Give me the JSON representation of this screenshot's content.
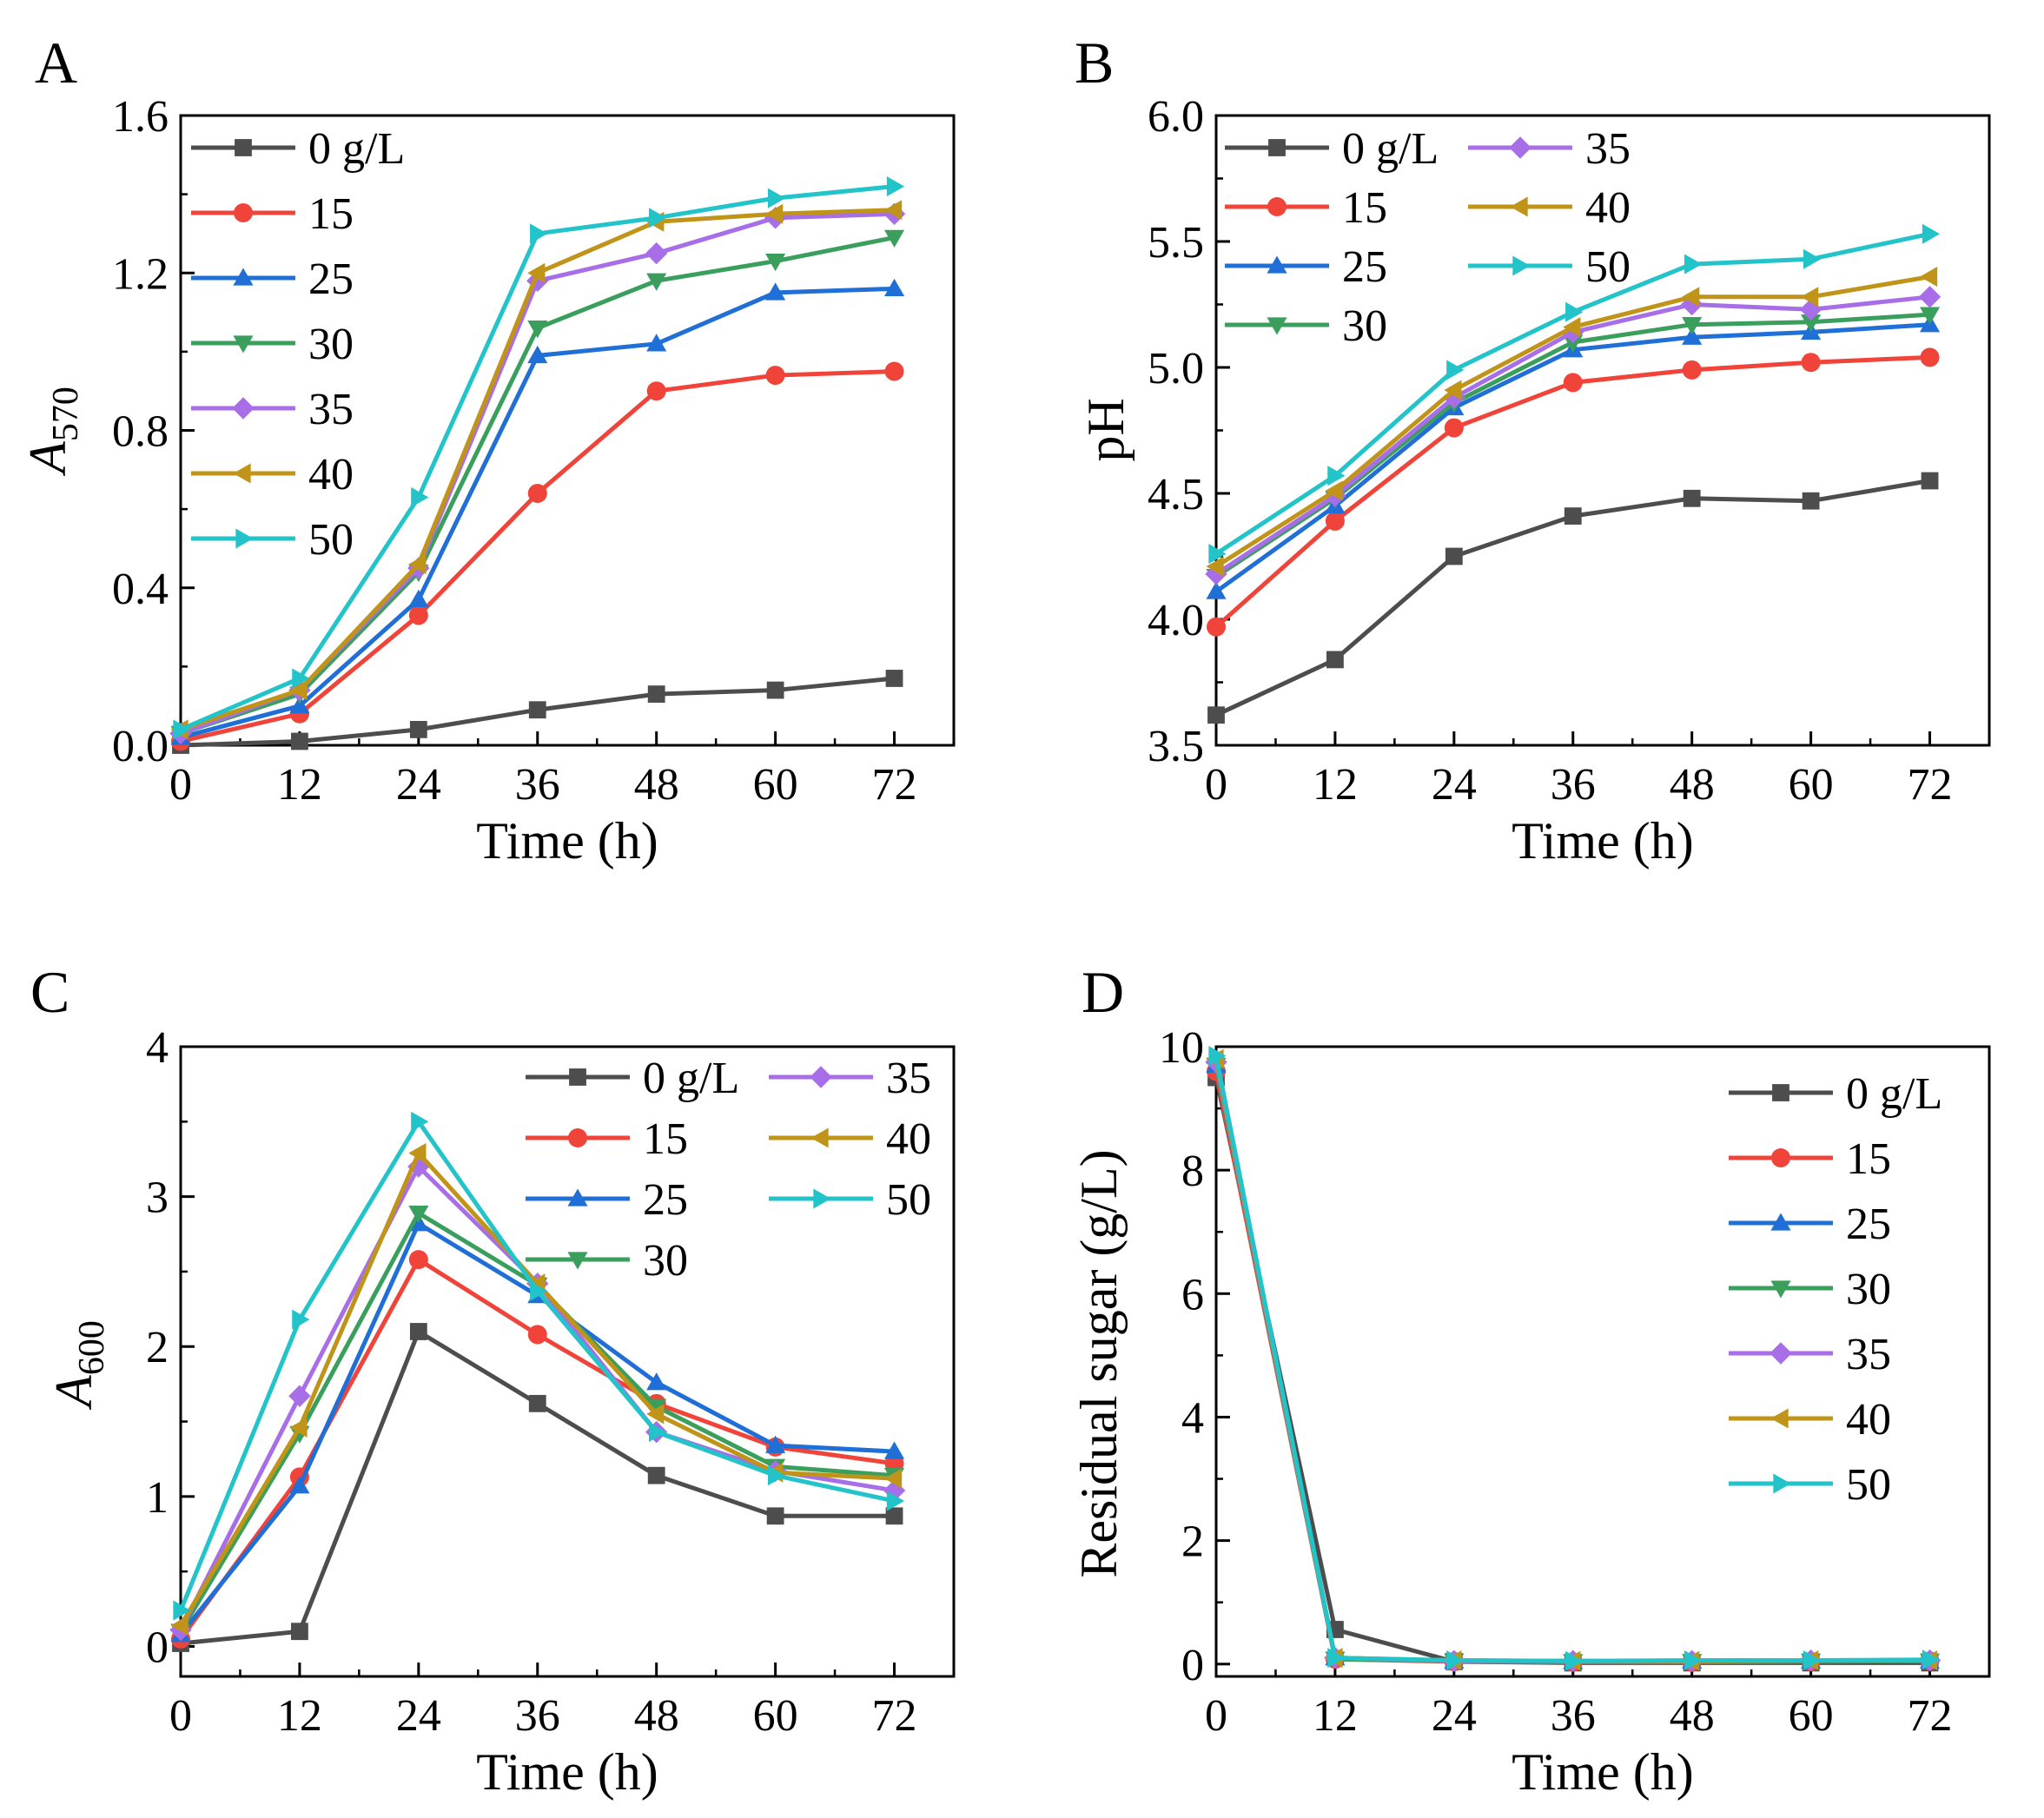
{
  "figure": "Four-panel line chart figure",
  "colors": {
    "0 g/L": "#4d4d4d",
    "15": "#f0443a",
    "25": "#1f6fd6",
    "30": "#3a9e5c",
    "35": "#a86ee8",
    "40": "#c09418",
    "50": "#22c3c9"
  },
  "chart_data": [
    {
      "panel": "A",
      "type": "line",
      "xlabel": "Time (h)",
      "ylabel": "A570",
      "ylabel_main": "A",
      "ylabel_sub": "570",
      "x": [
        0,
        12,
        24,
        36,
        48,
        60,
        72
      ],
      "xlim": [
        0,
        78
      ],
      "ylim": [
        0,
        1.6
      ],
      "xticks": [
        0,
        12,
        24,
        36,
        48,
        60,
        72
      ],
      "yticks": [
        "0.0",
        "0.4",
        "0.8",
        "1.2",
        "1.6"
      ],
      "legend_position": "top-left",
      "legend_columns": 1,
      "series": [
        {
          "name": "0 g/L",
          "marker": "square",
          "values": [
            0.0,
            0.01,
            0.04,
            0.09,
            0.13,
            0.14,
            0.17
          ]
        },
        {
          "name": "15",
          "marker": "circle",
          "values": [
            0.01,
            0.08,
            0.33,
            0.64,
            0.9,
            0.94,
            0.95
          ]
        },
        {
          "name": "25",
          "marker": "triangle-up",
          "values": [
            0.02,
            0.1,
            0.37,
            0.99,
            1.02,
            1.15,
            1.16
          ]
        },
        {
          "name": "30",
          "marker": "triangle-down",
          "values": [
            0.03,
            0.13,
            0.44,
            1.06,
            1.18,
            1.23,
            1.29
          ]
        },
        {
          "name": "35",
          "marker": "diamond",
          "values": [
            0.03,
            0.14,
            0.45,
            1.18,
            1.25,
            1.34,
            1.35
          ]
        },
        {
          "name": "40",
          "marker": "triangle-left",
          "values": [
            0.04,
            0.14,
            0.46,
            1.2,
            1.33,
            1.35,
            1.36
          ]
        },
        {
          "name": "50",
          "marker": "triangle-right",
          "values": [
            0.04,
            0.17,
            0.63,
            1.3,
            1.34,
            1.39,
            1.42
          ]
        }
      ]
    },
    {
      "panel": "B",
      "type": "line",
      "xlabel": "Time (h)",
      "ylabel": "pH",
      "x": [
        0,
        12,
        24,
        36,
        48,
        60,
        72
      ],
      "xlim": [
        0,
        78
      ],
      "ylim": [
        3.5,
        6.0
      ],
      "xticks": [
        0,
        12,
        24,
        36,
        48,
        60,
        72
      ],
      "yticks": [
        "3.5",
        "4.0",
        "4.5",
        "5.0",
        "5.5",
        "6.0"
      ],
      "legend_position": "top-left",
      "legend_columns": 2,
      "series": [
        {
          "name": "0 g/L",
          "marker": "square",
          "values": [
            3.62,
            3.84,
            4.25,
            4.41,
            4.48,
            4.47,
            4.55
          ]
        },
        {
          "name": "15",
          "marker": "circle",
          "values": [
            3.97,
            4.39,
            4.76,
            4.94,
            4.99,
            5.02,
            5.04
          ]
        },
        {
          "name": "25",
          "marker": "triangle-up",
          "values": [
            4.11,
            4.45,
            4.84,
            5.07,
            5.12,
            5.14,
            5.17
          ]
        },
        {
          "name": "30",
          "marker": "triangle-down",
          "values": [
            4.17,
            4.48,
            4.86,
            5.1,
            5.17,
            5.18,
            5.21
          ]
        },
        {
          "name": "35",
          "marker": "diamond",
          "values": [
            4.18,
            4.49,
            4.88,
            5.14,
            5.25,
            5.23,
            5.28
          ]
        },
        {
          "name": "40",
          "marker": "triangle-left",
          "values": [
            4.21,
            4.51,
            4.91,
            5.16,
            5.28,
            5.28,
            5.36
          ]
        },
        {
          "name": "50",
          "marker": "triangle-right",
          "values": [
            4.26,
            4.57,
            4.99,
            5.22,
            5.41,
            5.43,
            5.53
          ]
        }
      ]
    },
    {
      "panel": "C",
      "type": "line",
      "xlabel": "Time (h)",
      "ylabel": "A600",
      "ylabel_main": "A",
      "ylabel_sub": "600",
      "x": [
        0,
        12,
        24,
        36,
        48,
        60,
        72
      ],
      "xlim": [
        0,
        78
      ],
      "ylim": [
        -0.2,
        4
      ],
      "xticks": [
        0,
        12,
        24,
        36,
        48,
        60,
        72
      ],
      "yticks": [
        "0",
        "1",
        "2",
        "3",
        "4"
      ],
      "legend_position": "top-right",
      "legend_columns": 2,
      "series": [
        {
          "name": "0 g/L",
          "marker": "square",
          "values": [
            0.02,
            0.1,
            2.1,
            1.62,
            1.14,
            0.87,
            0.87
          ]
        },
        {
          "name": "15",
          "marker": "circle",
          "values": [
            0.05,
            1.13,
            2.58,
            2.08,
            1.62,
            1.33,
            1.22
          ]
        },
        {
          "name": "25",
          "marker": "triangle-up",
          "values": [
            0.08,
            1.07,
            2.82,
            2.34,
            1.76,
            1.34,
            1.3
          ]
        },
        {
          "name": "30",
          "marker": "triangle-down",
          "values": [
            0.1,
            1.42,
            2.89,
            2.41,
            1.6,
            1.2,
            1.14
          ]
        },
        {
          "name": "35",
          "marker": "diamond",
          "values": [
            0.11,
            1.67,
            3.2,
            2.42,
            1.43,
            1.17,
            1.04
          ]
        },
        {
          "name": "40",
          "marker": "triangle-left",
          "values": [
            0.14,
            1.46,
            3.29,
            2.42,
            1.55,
            1.16,
            1.12
          ]
        },
        {
          "name": "50",
          "marker": "triangle-right",
          "values": [
            0.24,
            2.18,
            3.5,
            2.37,
            1.43,
            1.14,
            0.97
          ]
        }
      ]
    },
    {
      "panel": "D",
      "type": "line",
      "xlabel": "Time (h)",
      "ylabel": "Residual sugar (g/L)",
      "x": [
        0,
        12,
        24,
        36,
        48,
        60,
        72
      ],
      "xlim": [
        0,
        78
      ],
      "ylim": [
        -0.2,
        10
      ],
      "xticks": [
        0,
        12,
        24,
        36,
        48,
        60,
        72
      ],
      "yticks": [
        "0",
        "2",
        "4",
        "6",
        "8",
        "10"
      ],
      "legend_position": "top-right",
      "legend_columns": 1,
      "series": [
        {
          "name": "0 g/L",
          "marker": "square",
          "values": [
            9.5,
            0.56,
            0.04,
            0.02,
            0.02,
            0.02,
            0.02
          ]
        },
        {
          "name": "15",
          "marker": "circle",
          "values": [
            9.6,
            0.08,
            0.04,
            0.03,
            0.03,
            0.04,
            0.05
          ]
        },
        {
          "name": "25",
          "marker": "triangle-up",
          "values": [
            9.7,
            0.1,
            0.05,
            0.04,
            0.05,
            0.05,
            0.05
          ]
        },
        {
          "name": "30",
          "marker": "triangle-down",
          "values": [
            9.7,
            0.08,
            0.05,
            0.04,
            0.04,
            0.05,
            0.05
          ]
        },
        {
          "name": "35",
          "marker": "diamond",
          "values": [
            9.75,
            0.1,
            0.05,
            0.05,
            0.05,
            0.06,
            0.06
          ]
        },
        {
          "name": "40",
          "marker": "triangle-left",
          "values": [
            9.8,
            0.1,
            0.06,
            0.05,
            0.05,
            0.06,
            0.06
          ]
        },
        {
          "name": "50",
          "marker": "triangle-right",
          "values": [
            9.85,
            0.1,
            0.06,
            0.05,
            0.06,
            0.06,
            0.07
          ]
        }
      ]
    }
  ]
}
